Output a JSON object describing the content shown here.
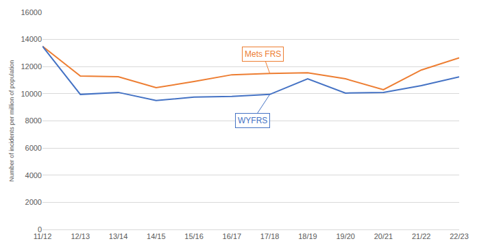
{
  "chart_data": {
    "type": "line",
    "y_label": "Number of incidents per million of population",
    "categories": [
      "11/12",
      "12/13",
      "13/14",
      "14/15",
      "15/16",
      "16/17",
      "17/18",
      "18/19",
      "19/20",
      "20/21",
      "21/22",
      "22/23"
    ],
    "series": [
      {
        "name": "Mets FRS",
        "color": "#ed7d31",
        "values": [
          13500,
          11300,
          11250,
          10450,
          10900,
          11400,
          11500,
          11550,
          11100,
          10300,
          11750,
          12650
        ]
      },
      {
        "name": "WYFRS",
        "color": "#4472c4",
        "values": [
          13500,
          9950,
          10100,
          9500,
          9750,
          9800,
          9950,
          11100,
          10050,
          10100,
          10600,
          11250
        ]
      }
    ],
    "ylim": [
      0,
      16000
    ],
    "yticks": [
      0,
      2000,
      4000,
      6000,
      8000,
      10000,
      12000,
      14000,
      16000
    ],
    "grid": true
  }
}
